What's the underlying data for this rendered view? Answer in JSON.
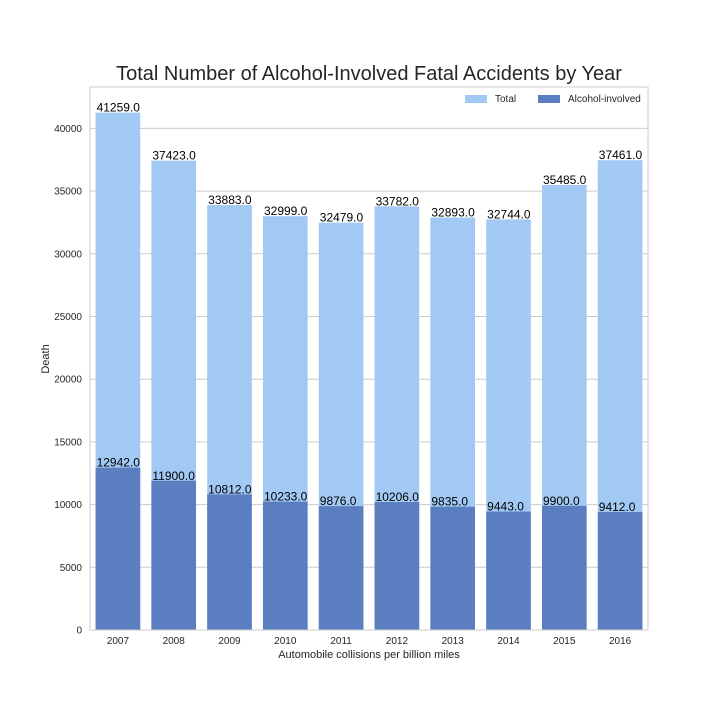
{
  "chart_data": {
    "type": "bar",
    "title": "Total Number of Alcohol-Involved Fatal Accidents by Year",
    "xlabel": "Automobile collisions per billion miles",
    "ylabel": "Death",
    "categories": [
      "2007",
      "2008",
      "2009",
      "2010",
      "2011",
      "2012",
      "2013",
      "2014",
      "2015",
      "2016"
    ],
    "series": [
      {
        "name": "Total",
        "color": "#a1c9f4",
        "values": [
          41259.0,
          37423.0,
          33883.0,
          32999.0,
          32479.0,
          33782.0,
          32893.0,
          32744.0,
          35485.0,
          37461.0
        ],
        "labels": [
          "41259.0",
          "37423.0",
          "33883.0",
          "32999.0",
          "32479.0",
          "33782.0",
          "32893.0",
          "32744.0",
          "35485.0",
          "37461.0"
        ]
      },
      {
        "name": "Alcohol-involved",
        "color": "#5b7ec1",
        "values": [
          12942.0,
          11900.0,
          10812.0,
          10233.0,
          9876.0,
          10206.0,
          9835.0,
          9443.0,
          9900.0,
          9412.0
        ],
        "labels": [
          "12942.0",
          "11900.0",
          "10812.0",
          "10233.0",
          "9876.0",
          "10206.0",
          "9835.0",
          "9443.0",
          "9900.0",
          "9412.0"
        ]
      }
    ],
    "ylim": [
      0,
      43300
    ],
    "yticks": [
      0,
      5000,
      10000,
      15000,
      20000,
      25000,
      30000,
      35000,
      40000
    ],
    "ytick_labels": [
      "0",
      "5000",
      "10000",
      "15000",
      "20000",
      "25000",
      "30000",
      "35000",
      "40000"
    ],
    "grid": true,
    "legend_position": "top-right",
    "layout": "overlay"
  }
}
